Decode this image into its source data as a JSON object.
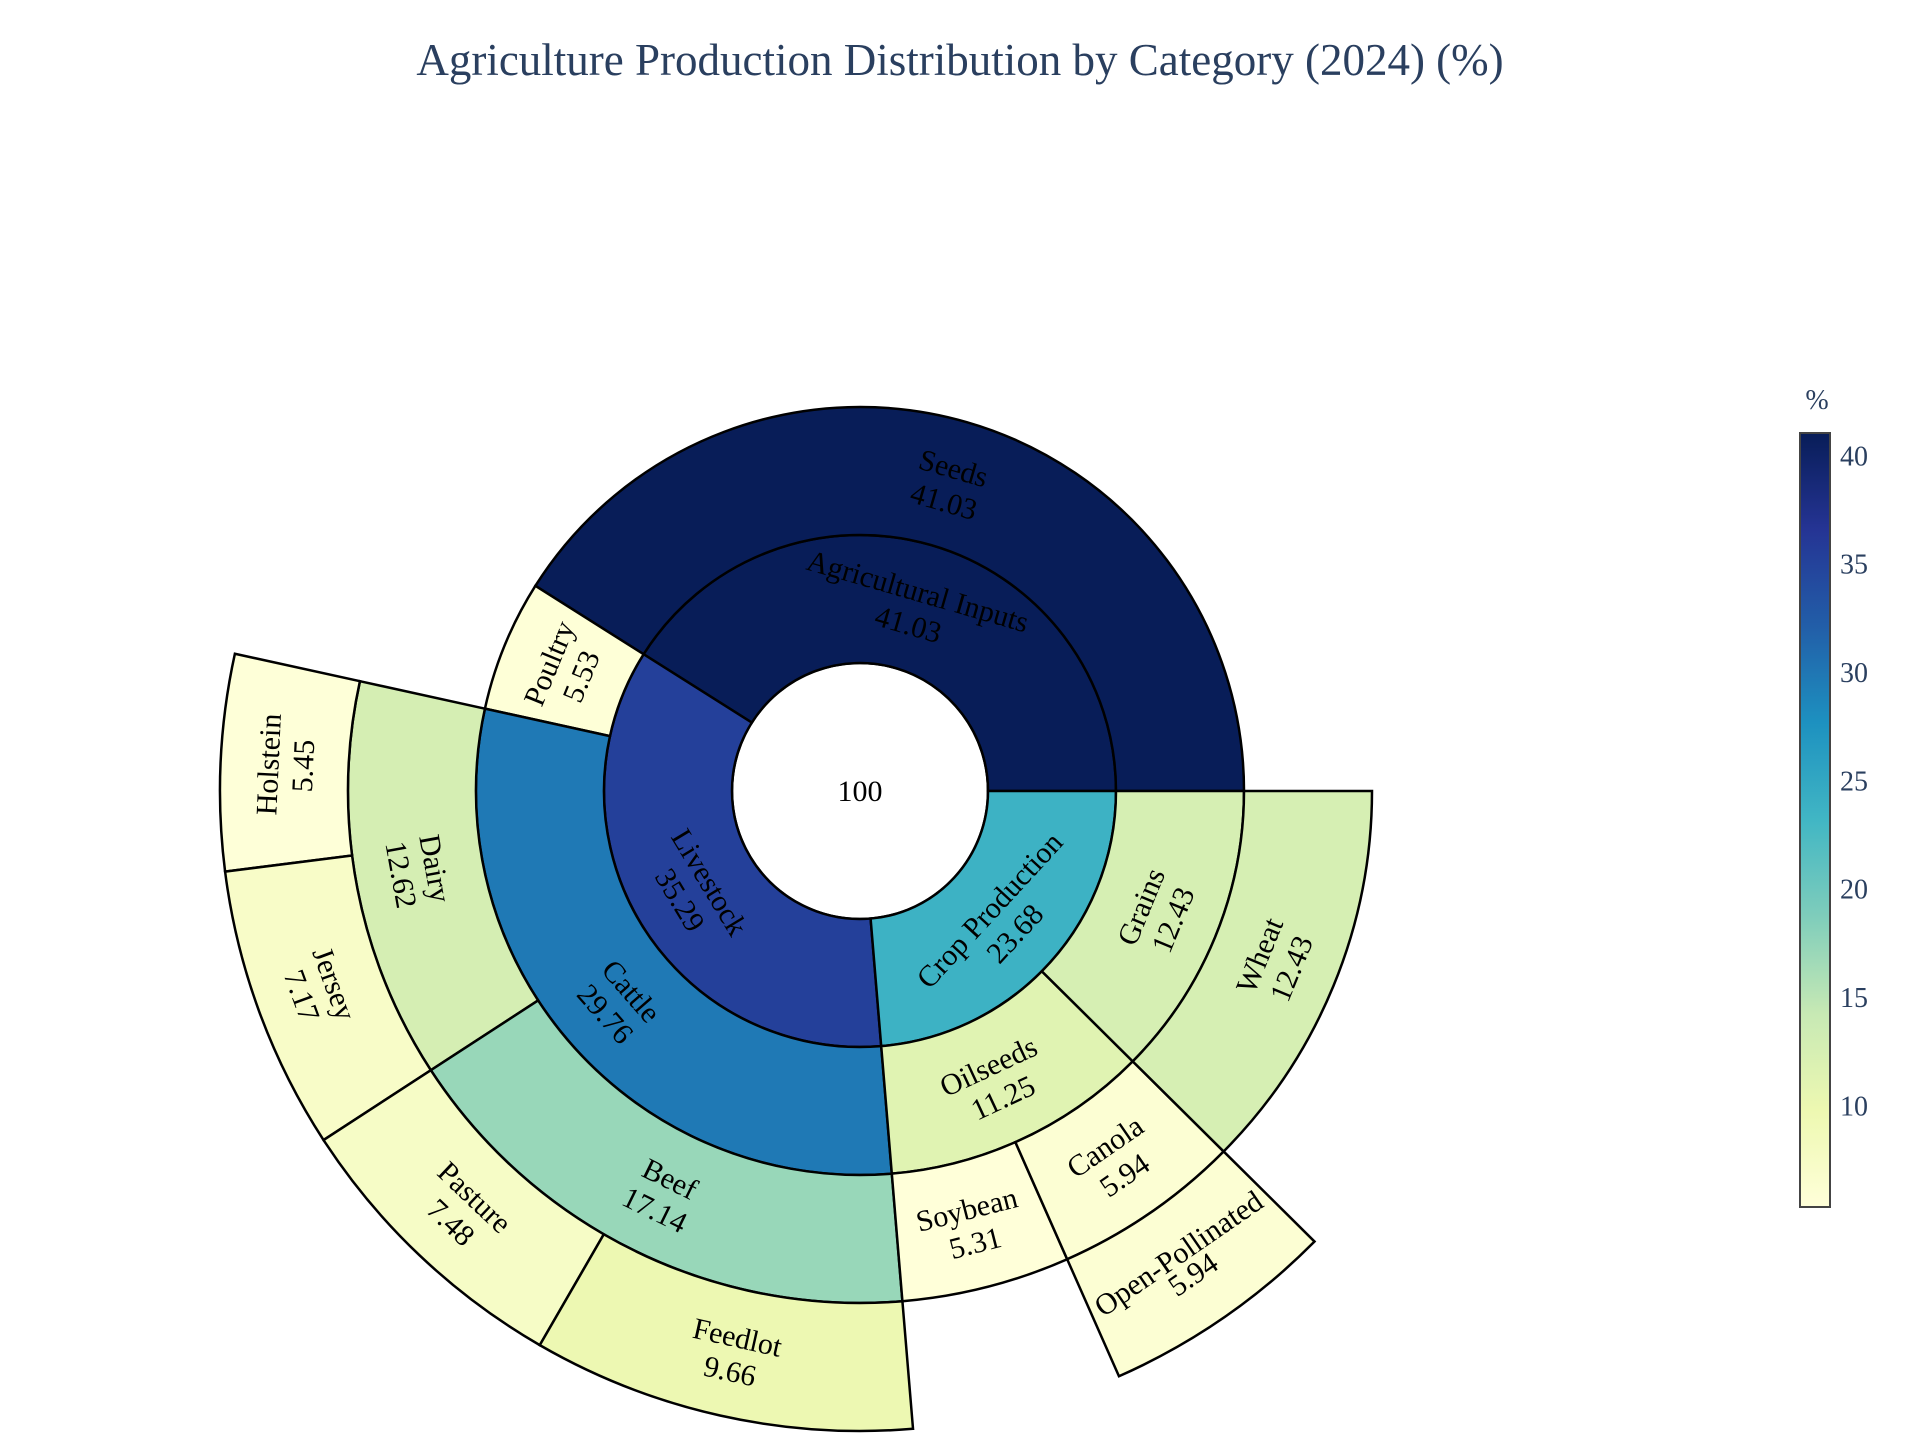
{
  "chart_data": {
    "type": "sunburst",
    "title": "Agriculture Production Distribution by Category (2024) (%)",
    "root": {
      "label": "",
      "value": 100
    },
    "nodes": [
      {
        "id": "agri",
        "label": "Agricultural Inputs",
        "parent": "root",
        "value": 41.03
      },
      {
        "id": "seeds",
        "label": "Seeds",
        "parent": "agri",
        "value": 41.03
      },
      {
        "id": "crop",
        "label": "Crop Production",
        "parent": "root",
        "value": 23.68
      },
      {
        "id": "oilseeds",
        "label": "Oilseeds",
        "parent": "crop",
        "value": 11.25
      },
      {
        "id": "soybean",
        "label": "Soybean",
        "parent": "oilseeds",
        "value": 5.31
      },
      {
        "id": "canola",
        "label": "Canola",
        "parent": "oilseeds",
        "value": 5.94
      },
      {
        "id": "openpoll",
        "label": "Open-Pollinated",
        "parent": "canola",
        "value": 5.94
      },
      {
        "id": "grains",
        "label": "Grains",
        "parent": "crop",
        "value": 12.43
      },
      {
        "id": "wheat",
        "label": "Wheat",
        "parent": "grains",
        "value": 12.43
      },
      {
        "id": "livestock",
        "label": "Livestock",
        "parent": "root",
        "value": 35.29
      },
      {
        "id": "poultry",
        "label": "Poultry",
        "parent": "livestock",
        "value": 5.53
      },
      {
        "id": "cattle",
        "label": "Cattle",
        "parent": "livestock",
        "value": 29.76
      },
      {
        "id": "dairy",
        "label": "Dairy",
        "parent": "cattle",
        "value": 12.62
      },
      {
        "id": "holstein",
        "label": "Holstein",
        "parent": "dairy",
        "value": 5.45
      },
      {
        "id": "jersey",
        "label": "Jersey",
        "parent": "dairy",
        "value": 7.17
      },
      {
        "id": "beef",
        "label": "Beef",
        "parent": "cattle",
        "value": 17.14
      },
      {
        "id": "pasture",
        "label": "Pasture",
        "parent": "beef",
        "value": 7.48
      },
      {
        "id": "feedlot",
        "label": "Feedlot",
        "parent": "beef",
        "value": 9.66
      }
    ],
    "colorscale": {
      "name": "YlGnBu",
      "title": "%",
      "min": 5.31,
      "max": 41.03,
      "ticks": [
        10,
        15,
        20,
        25,
        30,
        35,
        40
      ],
      "stops": [
        "#ffffd9",
        "#edf8b1",
        "#c7e9b4",
        "#7fcdbb",
        "#41b6c4",
        "#1d91c0",
        "#225ea8",
        "#253494",
        "#081d58"
      ]
    }
  }
}
